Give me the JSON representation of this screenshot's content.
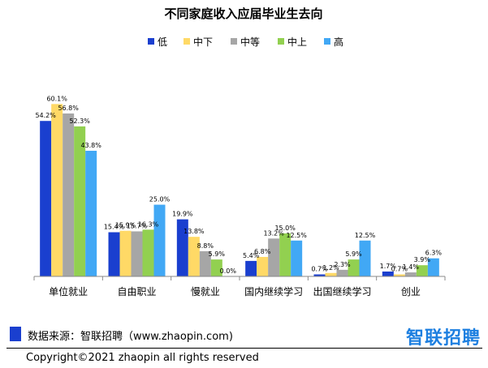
{
  "chart_data": {
    "type": "bar",
    "title": "不同家庭收入应届毕业生去向",
    "categories": [
      "单位就业",
      "自由职业",
      "慢就业",
      "国内继续学习",
      "出国继续学习",
      "创业"
    ],
    "series": [
      {
        "name": "低",
        "color": "#1a3fcf",
        "values": [
          54.2,
          15.4,
          19.9,
          5.4,
          0.7,
          1.7
        ]
      },
      {
        "name": "中下",
        "color": "#ffd966",
        "values": [
          60.1,
          15.9,
          13.8,
          6.8,
          1.2,
          0.7
        ]
      },
      {
        "name": "中等",
        "color": "#a6a6a6",
        "values": [
          56.8,
          15.7,
          8.8,
          13.2,
          2.3,
          1.4
        ]
      },
      {
        "name": "中上",
        "color": "#92d050",
        "values": [
          52.3,
          16.3,
          5.9,
          15.0,
          5.9,
          3.9
        ]
      },
      {
        "name": "高",
        "color": "#41a8f5",
        "values": [
          43.8,
          25.0,
          0.0,
          12.5,
          12.5,
          6.3
        ]
      }
    ],
    "value_labels": [
      [
        "54.2%",
        "60.1%",
        "56.8%",
        "52.3%",
        "43.8%"
      ],
      [
        "15.4%",
        "15.9%",
        "15.7%",
        "16.3%",
        "25.0%"
      ],
      [
        "19.9%",
        "13.8%",
        "8.8%",
        "5.9%",
        "0.0%"
      ],
      [
        "5.4%",
        "6.8%",
        "13.2%",
        "15.0%",
        "12.5%"
      ],
      [
        "0.7%",
        "1.2%",
        "2.3%",
        "5.9%",
        "12.5%"
      ],
      [
        "1.7%",
        "0.7%",
        "1.4%",
        "3.9%",
        "6.3%"
      ]
    ],
    "ylim": [
      0,
      65
    ],
    "legend_position": "top",
    "grid": false
  },
  "footer": {
    "source": "数据来源：智联招聘（www.zhaopin.com)",
    "logo_text": "智联招聘",
    "copyright": "Copyright©2021 zhaopin all rights reserved"
  }
}
